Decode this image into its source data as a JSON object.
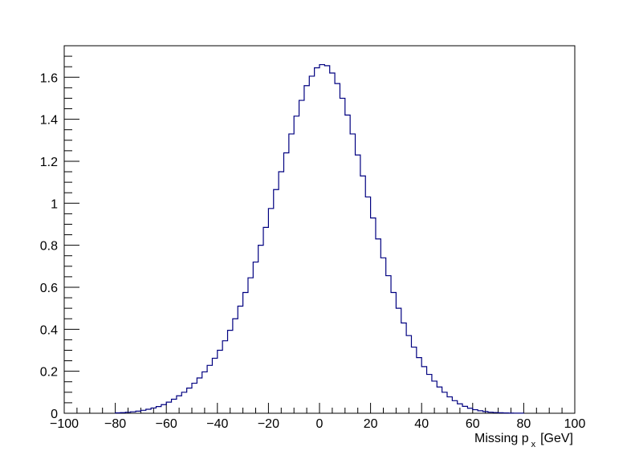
{
  "chart_data": {
    "type": "line",
    "style": "step-histogram",
    "title": "",
    "xlabel_main": "Missing p",
    "xlabel_sub": "x",
    "xlabel_unit": "[GeV]",
    "ylabel": "",
    "xlim": [
      -100,
      100
    ],
    "ylim": [
      0,
      1.75
    ],
    "x_ticks": [
      -100,
      -80,
      -60,
      -40,
      -20,
      0,
      20,
      40,
      60,
      80,
      100
    ],
    "x_tick_labels": [
      "−100",
      "−80",
      "−60",
      "−40",
      "−20",
      "0",
      "20",
      "40",
      "60",
      "80",
      "100"
    ],
    "y_ticks": [
      0,
      0.2,
      0.4,
      0.6,
      0.8,
      1.0,
      1.2,
      1.4,
      1.6
    ],
    "y_tick_labels": [
      "0",
      "0.2",
      "0.4",
      "0.6",
      "0.8",
      "1",
      "1.2",
      "1.4",
      "1.6"
    ],
    "grid": false,
    "line_color": "#000080",
    "bin_width": 2,
    "series": [
      {
        "x": [
          -80,
          -78,
          -76,
          -74,
          -72,
          -70,
          -68,
          -66,
          -64,
          -62,
          -60,
          -58,
          -56,
          -54,
          -52,
          -50,
          -48,
          -46,
          -44,
          -42,
          -40,
          -38,
          -36,
          -34,
          -32,
          -30,
          -28,
          -26,
          -24,
          -22,
          -20,
          -18,
          -16,
          -14,
          -12,
          -10,
          -8,
          -6,
          -4,
          -2,
          0,
          2,
          4,
          6,
          8,
          10,
          12,
          14,
          16,
          18,
          20,
          22,
          24,
          26,
          28,
          30,
          32,
          34,
          36,
          38,
          40,
          42,
          44,
          46,
          48,
          50,
          52,
          54,
          56,
          58,
          60,
          62,
          64,
          66,
          68,
          70,
          72,
          74,
          76,
          78
        ],
        "values": [
          0.002,
          0.003,
          0.005,
          0.007,
          0.01,
          0.014,
          0.019,
          0.025,
          0.032,
          0.041,
          0.053,
          0.067,
          0.083,
          0.1,
          0.12,
          0.143,
          0.168,
          0.197,
          0.228,
          0.262,
          0.3,
          0.345,
          0.395,
          0.45,
          0.51,
          0.575,
          0.645,
          0.72,
          0.8,
          0.885,
          0.975,
          1.065,
          1.15,
          1.24,
          1.33,
          1.415,
          1.49,
          1.56,
          1.605,
          1.645,
          1.66,
          1.655,
          1.62,
          1.57,
          1.5,
          1.42,
          1.33,
          1.23,
          1.13,
          1.03,
          0.93,
          0.83,
          0.74,
          0.655,
          0.575,
          0.5,
          0.43,
          0.37,
          0.315,
          0.265,
          0.222,
          0.185,
          0.153,
          0.125,
          0.1,
          0.078,
          0.06,
          0.045,
          0.033,
          0.024,
          0.017,
          0.012,
          0.008,
          0.005,
          0.0035,
          0.0025,
          0.0015,
          0.001,
          0.0007,
          0.0005
        ]
      }
    ]
  }
}
